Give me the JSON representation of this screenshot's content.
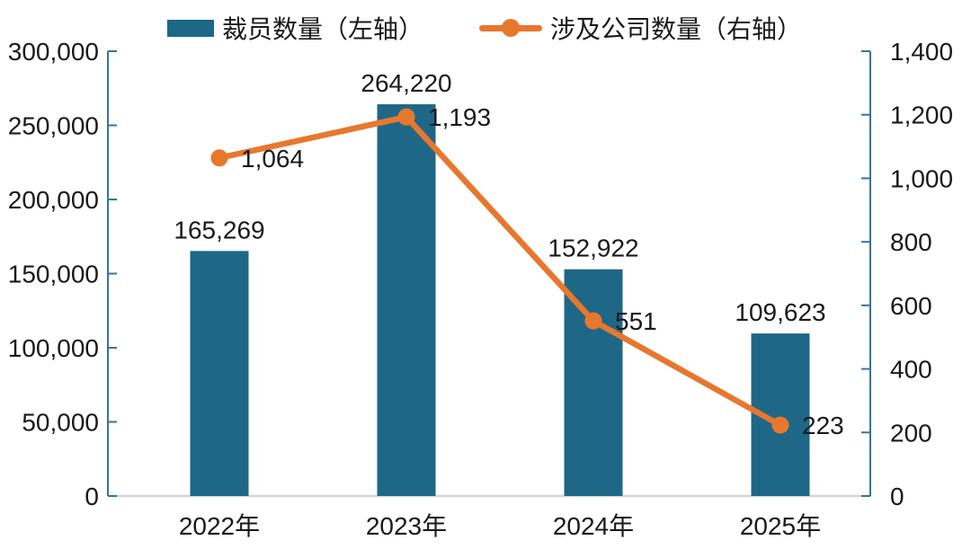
{
  "legend": [
    {
      "label": "裁员数量（左轴）",
      "type": "bar",
      "color": "#1F6787"
    },
    {
      "label": "涉及公司数量（右轴）",
      "type": "line",
      "color": "#E8772E"
    }
  ],
  "colors": {
    "bar": "#1F6787",
    "line": "#E8772E",
    "axis": "#35749E",
    "baseline": "#D6D6D6",
    "text": "#1a1a1a"
  },
  "chart_data": {
    "type": "bar+line combo (dual axis)",
    "categories": [
      "2022年",
      "2023年",
      "2024年",
      "2025年"
    ],
    "series": [
      {
        "name": "裁员数量（左轴）",
        "type": "bar",
        "axis": "left",
        "color": "#1F6787",
        "values": [
          165269,
          264220,
          152922,
          109623
        ],
        "labels": [
          "165,269",
          "264,220",
          "152,922",
          "109,623"
        ]
      },
      {
        "name": "涉及公司数量（右轴）",
        "type": "line",
        "axis": "right",
        "color": "#E8772E",
        "values": [
          1064,
          1193,
          551,
          223
        ],
        "labels": [
          "1,064",
          "1,193",
          "551",
          "223"
        ]
      }
    ],
    "left_axis": {
      "min": 0,
      "max": 300000,
      "step": 50000,
      "tick_labels": [
        "0",
        "50,000",
        "100,000",
        "150,000",
        "200,000",
        "250,000",
        "300,000"
      ]
    },
    "right_axis": {
      "min": 0,
      "max": 1400,
      "step": 200,
      "tick_labels": [
        "0",
        "200",
        "400",
        "600",
        "800",
        "1,000",
        "1,200",
        "1,400"
      ]
    },
    "grid": false,
    "legend_position": "top"
  }
}
